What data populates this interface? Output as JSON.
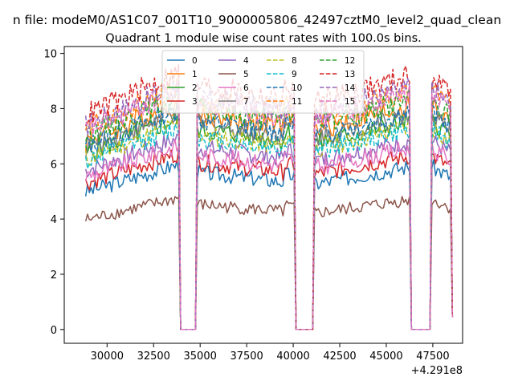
{
  "chart_data": {
    "type": "line",
    "suptitle": "n file: modeM0/AS1C07_001T10_9000005806_42497cztM0_level2_quad_clean",
    "title": "Quadrant 1 module wise count rates with 100.0s bins.",
    "xlabel": "",
    "ylabel": "",
    "x_offset_label": "+4.291e8",
    "xlim": [
      27700,
      49100
    ],
    "ylim": [
      -0.5,
      10.25
    ],
    "xticks": [
      30000,
      32500,
      35000,
      37500,
      40000,
      42500,
      45000,
      47500
    ],
    "xtick_labels": [
      "30000",
      "32500",
      "35000",
      "37500",
      "40000",
      "42500",
      "45000",
      "47500"
    ],
    "yticks": [
      0,
      2,
      4,
      6,
      8,
      10
    ],
    "ytick_labels": [
      "0",
      "2",
      "4",
      "6",
      "8",
      "10"
    ],
    "legend_position": "top-center",
    "x_start": 28850,
    "bin_size": 100,
    "gaps": [
      [
        33850,
        34850
      ],
      [
        40050,
        41150
      ],
      [
        46250,
        47450
      ]
    ],
    "x_end": 48550,
    "series": [
      {
        "name": "0",
        "color": "#1f77b4",
        "style": "solid",
        "level": 5.4
      },
      {
        "name": "1",
        "color": "#ff7f0e",
        "style": "solid",
        "level": 7.4
      },
      {
        "name": "2",
        "color": "#2ca02c",
        "style": "solid",
        "level": 6.9
      },
      {
        "name": "3",
        "color": "#d62728",
        "style": "solid",
        "level": 5.75
      },
      {
        "name": "4",
        "color": "#9467bd",
        "style": "solid",
        "level": 6.25
      },
      {
        "name": "5",
        "color": "#8c564b",
        "style": "solid",
        "level": 4.3
      },
      {
        "name": "6",
        "color": "#e377c2",
        "style": "solid",
        "level": 6.0
      },
      {
        "name": "7",
        "color": "#7f7f7f",
        "style": "solid",
        "level": 7.1
      },
      {
        "name": "8",
        "color": "#bcbd22",
        "style": "dashed",
        "level": 6.7
      },
      {
        "name": "9",
        "color": "#17becf",
        "style": "dashed",
        "level": 6.6
      },
      {
        "name": "10",
        "color": "#1f77b4",
        "style": "dashed",
        "level": 7.2
      },
      {
        "name": "11",
        "color": "#ff7f0e",
        "style": "dashed",
        "level": 7.9
      },
      {
        "name": "12",
        "color": "#2ca02c",
        "style": "dashed",
        "level": 7.6
      },
      {
        "name": "13",
        "color": "#d62728",
        "style": "dashed",
        "level": 8.4
      },
      {
        "name": "14",
        "color": "#9467bd",
        "style": "dashed",
        "level": 8.0
      },
      {
        "name": "15",
        "color": "#e377c2",
        "style": "dashed",
        "level": 7.8
      }
    ]
  }
}
